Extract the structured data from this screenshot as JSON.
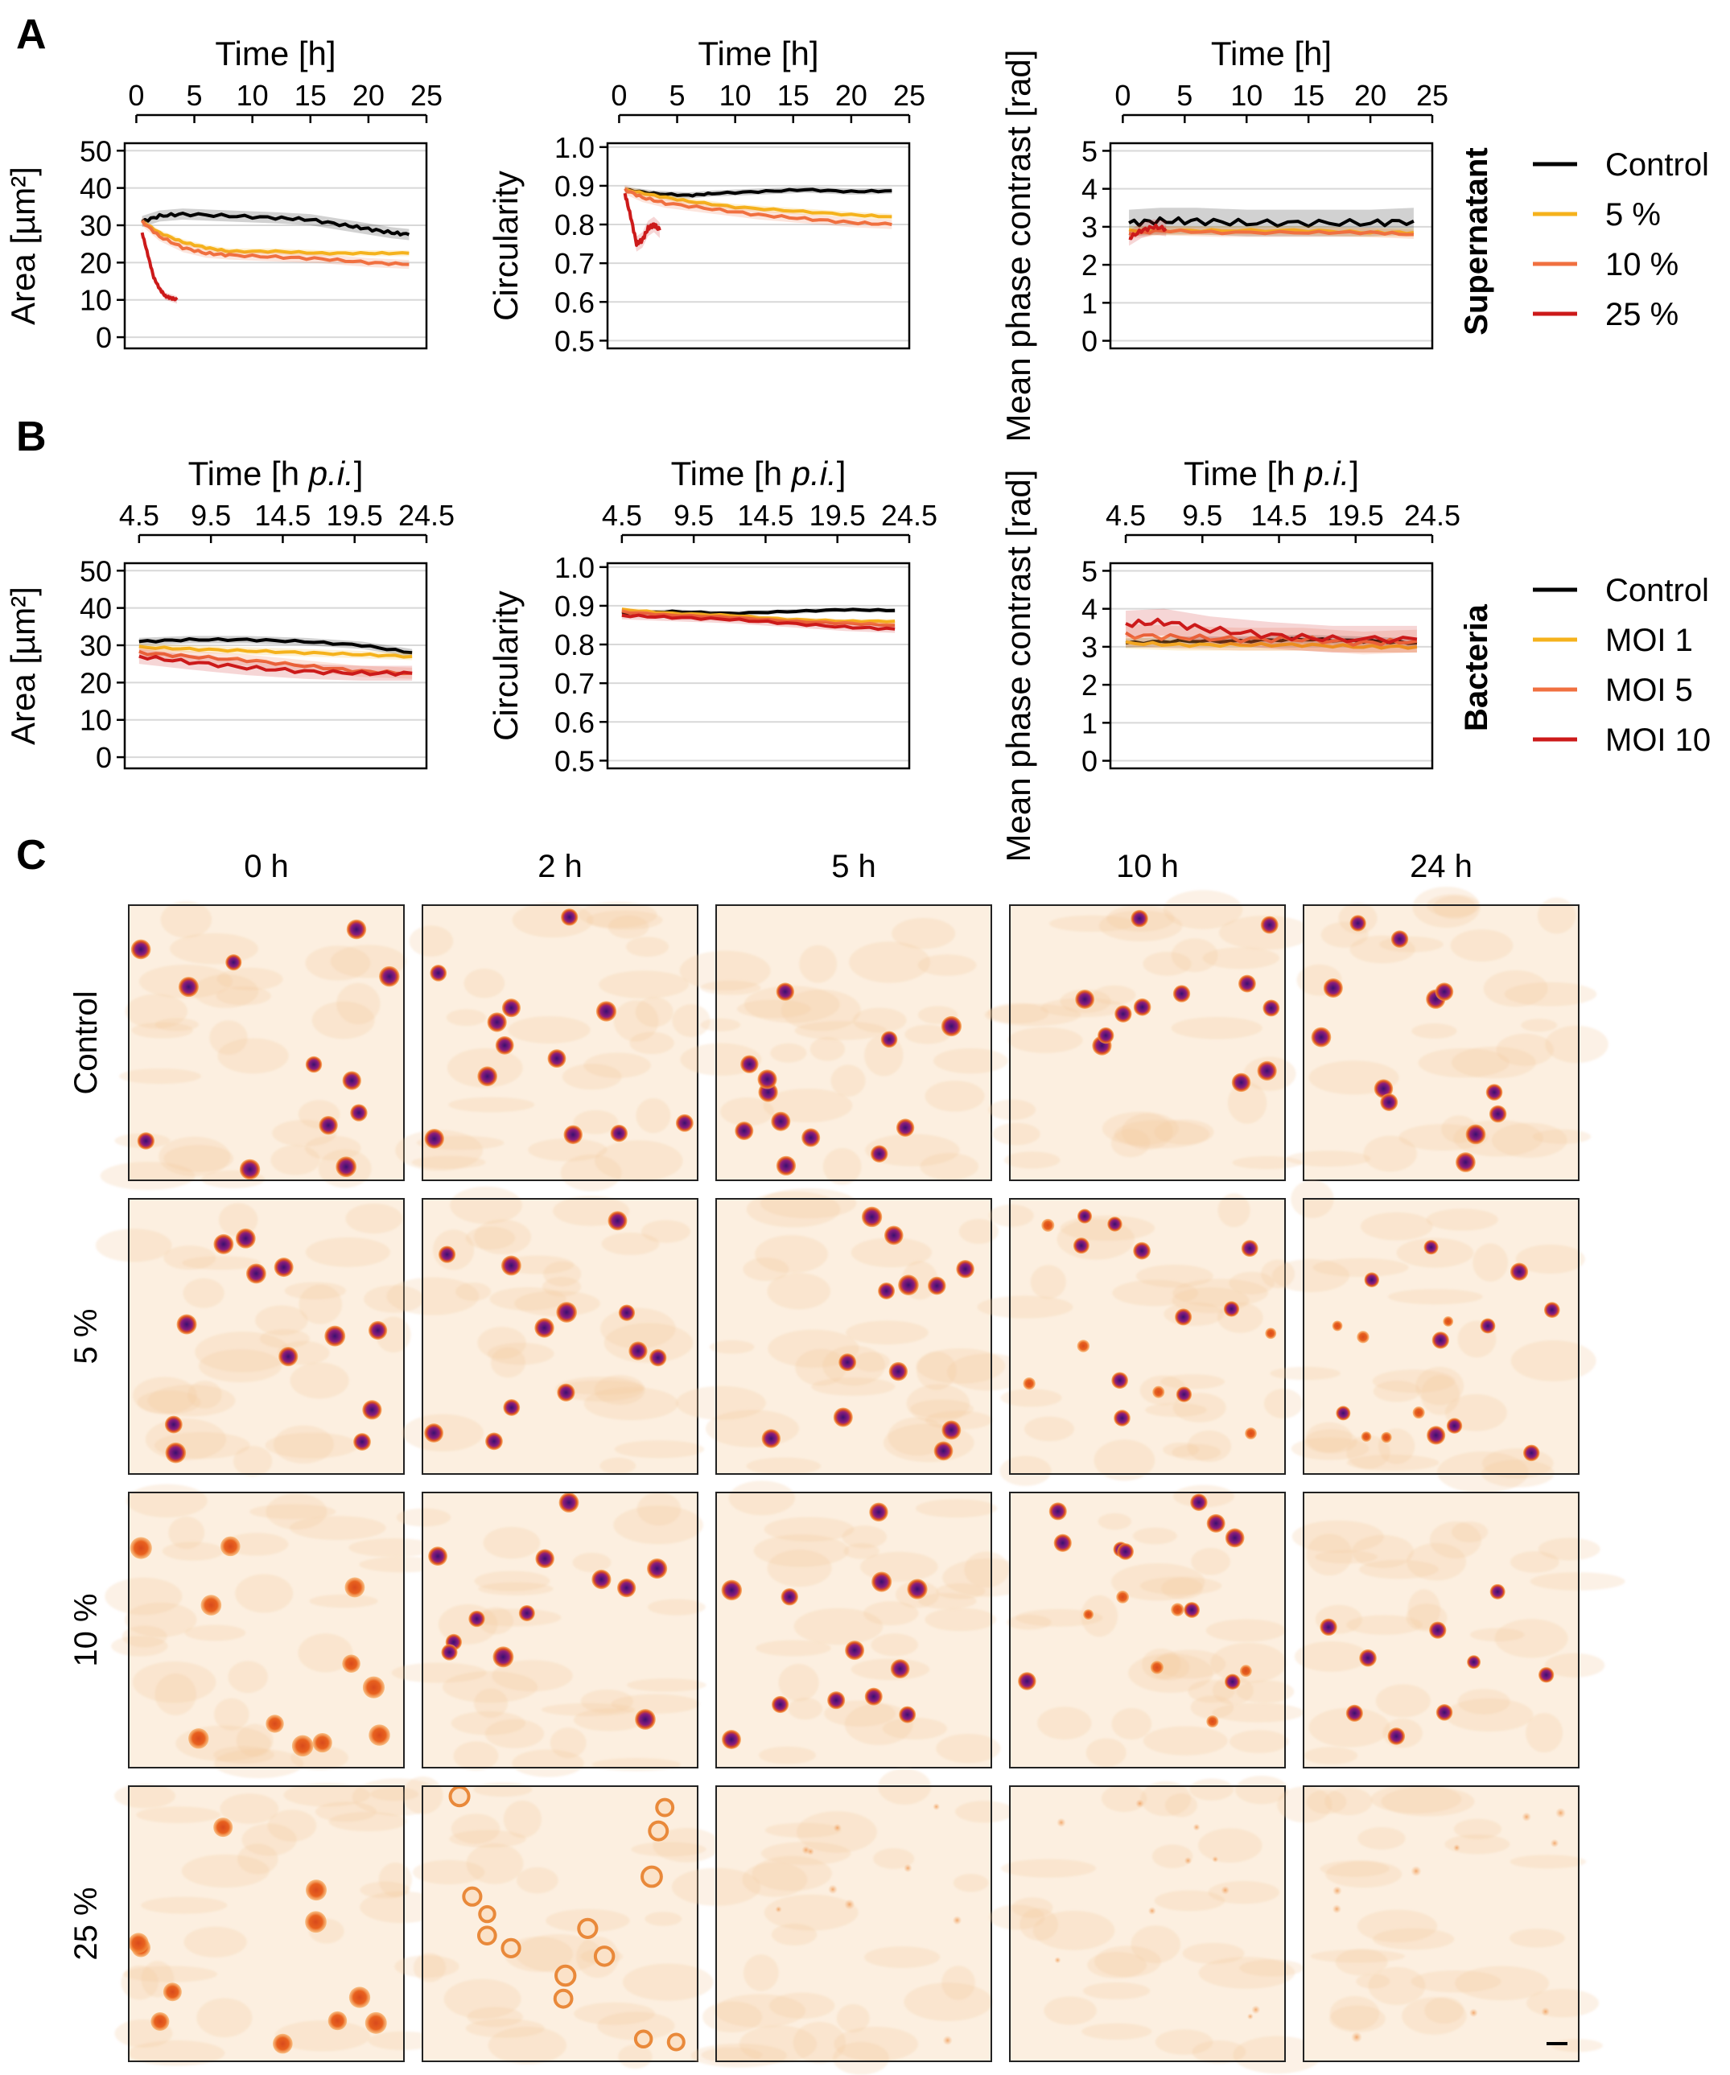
{
  "panels": [
    {
      "id": "A",
      "label": "A"
    },
    {
      "id": "B",
      "label": "B"
    },
    {
      "id": "C",
      "label": "C"
    }
  ],
  "colors": {
    "control": "#000000",
    "low": "#f5b21c",
    "mid": "#f07040",
    "high": "#cc1a1a"
  },
  "chart_data": [
    {
      "type": "line",
      "row": "A",
      "title": "",
      "xlabel": "Time [h]",
      "ylabel": "Area [µm²]",
      "xlim": [
        -1,
        25
      ],
      "ylim": [
        -3,
        52
      ],
      "xticks": [
        0,
        5,
        10,
        15,
        20,
        25
      ],
      "xtick_labels": [
        "0",
        "5",
        "10",
        "15",
        "20",
        "25"
      ],
      "yticks": [
        0,
        10,
        20,
        30,
        40,
        50
      ],
      "ytick_labels": [
        "0",
        "10",
        "20",
        "30",
        "40",
        "50"
      ],
      "series": [
        {
          "name": "Control",
          "color_key": "control",
          "band": 1.5,
          "points": [
            [
              0.5,
              31
            ],
            [
              2,
              32.5
            ],
            [
              4,
              33
            ],
            [
              8,
              32.5
            ],
            [
              12,
              32
            ],
            [
              15,
              31.5
            ],
            [
              18,
              30
            ],
            [
              20,
              29
            ],
            [
              22,
              28
            ],
            [
              23.5,
              27.5
            ]
          ]
        },
        {
          "name": "5 %",
          "color_key": "low",
          "band": 0.8,
          "points": [
            [
              0.5,
              31
            ],
            [
              2,
              28
            ],
            [
              4,
              25.5
            ],
            [
              6,
              24
            ],
            [
              8,
              23
            ],
            [
              12,
              23
            ],
            [
              16,
              22.5
            ],
            [
              20,
              22.5
            ],
            [
              23.5,
              22.5
            ]
          ]
        },
        {
          "name": "10 %",
          "color_key": "mid",
          "band": 1.2,
          "points": [
            [
              0.5,
              31
            ],
            [
              2,
              27
            ],
            [
              4,
              24
            ],
            [
              6,
              22.5
            ],
            [
              8,
              22
            ],
            [
              12,
              21.5
            ],
            [
              16,
              21
            ],
            [
              20,
              20
            ],
            [
              23.5,
              19.5
            ]
          ]
        },
        {
          "name": "25 %",
          "color_key": "high",
          "band": 1.0,
          "points": [
            [
              0.5,
              28
            ],
            [
              1,
              22
            ],
            [
              1.5,
              16
            ],
            [
              2,
              13
            ],
            [
              2.5,
              11
            ],
            [
              3,
              10.5
            ],
            [
              3.5,
              10
            ]
          ]
        }
      ]
    },
    {
      "type": "line",
      "row": "A",
      "title": "",
      "xlabel": "Time [h]",
      "ylabel": "Circularity",
      "xlim": [
        -1,
        25
      ],
      "ylim": [
        0.48,
        1.01
      ],
      "xticks": [
        0,
        5,
        10,
        15,
        20,
        25
      ],
      "xtick_labels": [
        "0",
        "5",
        "10",
        "15",
        "20",
        "25"
      ],
      "yticks": [
        0.5,
        0.6,
        0.7,
        0.8,
        0.9,
        1.0
      ],
      "ytick_labels": [
        "0.5",
        "0.6",
        "0.7",
        "0.8",
        "0.9",
        "1.0"
      ],
      "series": [
        {
          "name": "Control",
          "color_key": "control",
          "band": 0.008,
          "points": [
            [
              0.5,
              0.89
            ],
            [
              3,
              0.88
            ],
            [
              6,
              0.875
            ],
            [
              8,
              0.88
            ],
            [
              12,
              0.885
            ],
            [
              16,
              0.89
            ],
            [
              20,
              0.885
            ],
            [
              23.5,
              0.887
            ]
          ]
        },
        {
          "name": "5 %",
          "color_key": "low",
          "band": 0.008,
          "points": [
            [
              0.5,
              0.89
            ],
            [
              3,
              0.875
            ],
            [
              6,
              0.86
            ],
            [
              10,
              0.845
            ],
            [
              15,
              0.835
            ],
            [
              20,
              0.825
            ],
            [
              23.5,
              0.82
            ]
          ]
        },
        {
          "name": "10 %",
          "color_key": "mid",
          "band": 0.012,
          "points": [
            [
              0.5,
              0.89
            ],
            [
              2,
              0.87
            ],
            [
              4,
              0.855
            ],
            [
              8,
              0.84
            ],
            [
              12,
              0.825
            ],
            [
              16,
              0.815
            ],
            [
              20,
              0.805
            ],
            [
              23.5,
              0.8
            ]
          ]
        },
        {
          "name": "25 %",
          "color_key": "high",
          "band": 0.02,
          "points": [
            [
              0.5,
              0.88
            ],
            [
              1,
              0.82
            ],
            [
              1.5,
              0.75
            ],
            [
              2,
              0.76
            ],
            [
              2.5,
              0.79
            ],
            [
              3,
              0.8
            ],
            [
              3.5,
              0.785
            ]
          ]
        }
      ]
    },
    {
      "type": "line",
      "row": "A",
      "title": "",
      "xlabel": "Time [h]",
      "ylabel": "Mean phase contrast [rad]",
      "xlim": [
        -1,
        25
      ],
      "ylim": [
        -0.2,
        5.2
      ],
      "xticks": [
        0,
        5,
        10,
        15,
        20,
        25
      ],
      "xtick_labels": [
        "0",
        "5",
        "10",
        "15",
        "20",
        "25"
      ],
      "yticks": [
        0,
        1,
        2,
        3,
        4,
        5
      ],
      "ytick_labels": [
        "0",
        "1",
        "2",
        "3",
        "4",
        "5"
      ],
      "series": [
        {
          "name": "Control",
          "color_key": "control",
          "band": 0.35,
          "points": [
            [
              0.5,
              3.1
            ],
            [
              3,
              3.15
            ],
            [
              6,
              3.15
            ],
            [
              10,
              3.1
            ],
            [
              15,
              3.1
            ],
            [
              20,
              3.1
            ],
            [
              23.5,
              3.15
            ]
          ]
        },
        {
          "name": "5 %",
          "color_key": "low",
          "band": 0.12,
          "points": [
            [
              0.5,
              2.9
            ],
            [
              3,
              2.9
            ],
            [
              8,
              2.9
            ],
            [
              15,
              2.9
            ],
            [
              20,
              2.85
            ],
            [
              23.5,
              2.85
            ]
          ]
        },
        {
          "name": "10 %",
          "color_key": "mid",
          "band": 0.12,
          "points": [
            [
              0.5,
              2.8
            ],
            [
              3,
              2.9
            ],
            [
              8,
              2.85
            ],
            [
              15,
              2.85
            ],
            [
              20,
              2.85
            ],
            [
              23.5,
              2.8
            ]
          ]
        },
        {
          "name": "25 %",
          "color_key": "high",
          "band": 0.2,
          "points": [
            [
              0.5,
              2.7
            ],
            [
              1.5,
              2.9
            ],
            [
              2.5,
              3.0
            ],
            [
              3.5,
              2.95
            ]
          ]
        }
      ]
    },
    {
      "type": "line",
      "row": "B",
      "title": "",
      "xlabel_main": "Time [h ",
      "xlabel_italic": "p.i.",
      "xlabel_end": "]",
      "ylabel": "Area [µm²]",
      "xlim": [
        3.5,
        24.5
      ],
      "ylim": [
        -3,
        52
      ],
      "xticks": [
        4.5,
        9.5,
        14.5,
        19.5,
        24.5
      ],
      "xtick_labels": [
        "4.5",
        "9.5",
        "14.5",
        "19.5",
        "24.5"
      ],
      "yticks": [
        0,
        10,
        20,
        30,
        40,
        50
      ],
      "ytick_labels": [
        "0",
        "10",
        "20",
        "30",
        "40",
        "50"
      ],
      "series": [
        {
          "name": "Control",
          "color_key": "control",
          "band": 1.0,
          "points": [
            [
              4.5,
              31
            ],
            [
              8,
              31.5
            ],
            [
              12,
              31.5
            ],
            [
              16,
              31
            ],
            [
              20,
              30
            ],
            [
              23.5,
              28
            ]
          ]
        },
        {
          "name": "MOI 1",
          "color_key": "low",
          "band": 1.0,
          "points": [
            [
              4.5,
              29.5
            ],
            [
              8,
              29
            ],
            [
              12,
              28.5
            ],
            [
              16,
              28
            ],
            [
              20,
              27.5
            ],
            [
              23.5,
              27
            ]
          ]
        },
        {
          "name": "MOI 5",
          "color_key": "mid",
          "band": 1.5,
          "points": [
            [
              4.5,
              28
            ],
            [
              8,
              27
            ],
            [
              12,
              26
            ],
            [
              16,
              24.5
            ],
            [
              20,
              23
            ],
            [
              23.5,
              22.5
            ]
          ]
        },
        {
          "name": "MOI 10",
          "color_key": "high",
          "band": 2.0,
          "points": [
            [
              4.5,
              27
            ],
            [
              8,
              25.5
            ],
            [
              12,
              24
            ],
            [
              16,
              23
            ],
            [
              20,
              22.5
            ],
            [
              23.5,
              22.5
            ]
          ]
        }
      ]
    },
    {
      "type": "line",
      "row": "B",
      "title": "",
      "xlabel_main": "Time [h ",
      "xlabel_italic": "p.i.",
      "xlabel_end": "]",
      "ylabel": "Circularity",
      "xlim": [
        3.5,
        24.5
      ],
      "ylim": [
        0.48,
        1.01
      ],
      "xticks": [
        4.5,
        9.5,
        14.5,
        19.5,
        24.5
      ],
      "xtick_labels": [
        "4.5",
        "9.5",
        "14.5",
        "19.5",
        "24.5"
      ],
      "yticks": [
        0.5,
        0.6,
        0.7,
        0.8,
        0.9,
        1.0
      ],
      "ytick_labels": [
        "0.5",
        "0.6",
        "0.7",
        "0.8",
        "0.9",
        "1.0"
      ],
      "series": [
        {
          "name": "Control",
          "color_key": "control",
          "band": 0.006,
          "points": [
            [
              4.5,
              0.88
            ],
            [
              8,
              0.885
            ],
            [
              12,
              0.88
            ],
            [
              16,
              0.885
            ],
            [
              20,
              0.89
            ],
            [
              23.5,
              0.888
            ]
          ]
        },
        {
          "name": "MOI 1",
          "color_key": "low",
          "band": 0.006,
          "points": [
            [
              4.5,
              0.89
            ],
            [
              8,
              0.88
            ],
            [
              12,
              0.875
            ],
            [
              16,
              0.865
            ],
            [
              20,
              0.86
            ],
            [
              23.5,
              0.86
            ]
          ]
        },
        {
          "name": "MOI 5",
          "color_key": "mid",
          "band": 0.008,
          "points": [
            [
              4.5,
              0.885
            ],
            [
              8,
              0.875
            ],
            [
              12,
              0.87
            ],
            [
              16,
              0.86
            ],
            [
              20,
              0.855
            ],
            [
              23.5,
              0.85
            ]
          ]
        },
        {
          "name": "MOI 10",
          "color_key": "high",
          "band": 0.01,
          "points": [
            [
              4.5,
              0.875
            ],
            [
              8,
              0.87
            ],
            [
              12,
              0.865
            ],
            [
              16,
              0.855
            ],
            [
              20,
              0.845
            ],
            [
              23.5,
              0.84
            ]
          ]
        }
      ]
    },
    {
      "type": "line",
      "row": "B",
      "title": "",
      "xlabel_main": "Time [h ",
      "xlabel_italic": "p.i.",
      "xlabel_end": "]",
      "ylabel": "Mean phase contrast [rad]",
      "xlim": [
        3.5,
        24.5
      ],
      "ylim": [
        -0.2,
        5.2
      ],
      "xticks": [
        4.5,
        9.5,
        14.5,
        19.5,
        24.5
      ],
      "xtick_labels": [
        "4.5",
        "9.5",
        "14.5",
        "19.5",
        "24.5"
      ],
      "yticks": [
        0,
        1,
        2,
        3,
        4,
        5
      ],
      "ytick_labels": [
        "0",
        "1",
        "2",
        "3",
        "4",
        "5"
      ],
      "series": [
        {
          "name": "Control",
          "color_key": "control",
          "band": 0.12,
          "points": [
            [
              4.5,
              3.1
            ],
            [
              8,
              3.15
            ],
            [
              12,
              3.15
            ],
            [
              16,
              3.2
            ],
            [
              20,
              3.15
            ],
            [
              23.5,
              3.1
            ]
          ]
        },
        {
          "name": "MOI 1",
          "color_key": "low",
          "band": 0.15,
          "points": [
            [
              4.5,
              3.1
            ],
            [
              8,
              3.05
            ],
            [
              12,
              3.05
            ],
            [
              16,
              3.05
            ],
            [
              20,
              3.0
            ],
            [
              23.5,
              3.0
            ]
          ]
        },
        {
          "name": "MOI 5",
          "color_key": "mid",
          "band": 0.3,
          "points": [
            [
              4.5,
              3.3
            ],
            [
              8,
              3.25
            ],
            [
              12,
              3.2
            ],
            [
              16,
              3.2
            ],
            [
              20,
              3.1
            ],
            [
              23.5,
              3.15
            ]
          ]
        },
        {
          "name": "MOI 10",
          "color_key": "high",
          "band": 0.35,
          "points": [
            [
              4.5,
              3.6
            ],
            [
              7,
              3.65
            ],
            [
              10,
              3.45
            ],
            [
              14,
              3.3
            ],
            [
              18,
              3.2
            ],
            [
              23.5,
              3.2
            ]
          ]
        }
      ]
    }
  ],
  "legend_a": {
    "side_label": "Supernatant",
    "entries": [
      {
        "label": "Control",
        "color_key": "control"
      },
      {
        "label": "5 %",
        "color_key": "low"
      },
      {
        "label": "10 %",
        "color_key": "mid"
      },
      {
        "label": "25 %",
        "color_key": "high"
      }
    ]
  },
  "legend_b": {
    "side_label": "Bacteria",
    "entries": [
      {
        "label": "Control",
        "color_key": "control"
      },
      {
        "label": "MOI 1",
        "color_key": "low"
      },
      {
        "label": "MOI 5",
        "color_key": "mid"
      },
      {
        "label": "MOI 10",
        "color_key": "high"
      }
    ]
  },
  "grid_c": {
    "columns": [
      "0 h",
      "2 h",
      "5 h",
      "10 h",
      "24 h"
    ],
    "rows": [
      "Control",
      "5 %",
      "10 %",
      "25 %"
    ],
    "cell_appearance": [
      [
        "intact",
        "intact",
        "intact",
        "intact",
        "intact"
      ],
      [
        "intact",
        "intact",
        "intact",
        "mixed",
        "mixed"
      ],
      [
        "swollen",
        "intact",
        "intact",
        "mixed",
        "sparse"
      ],
      [
        "swollen",
        "ghost",
        "faint",
        "faint",
        "faint"
      ]
    ]
  }
}
